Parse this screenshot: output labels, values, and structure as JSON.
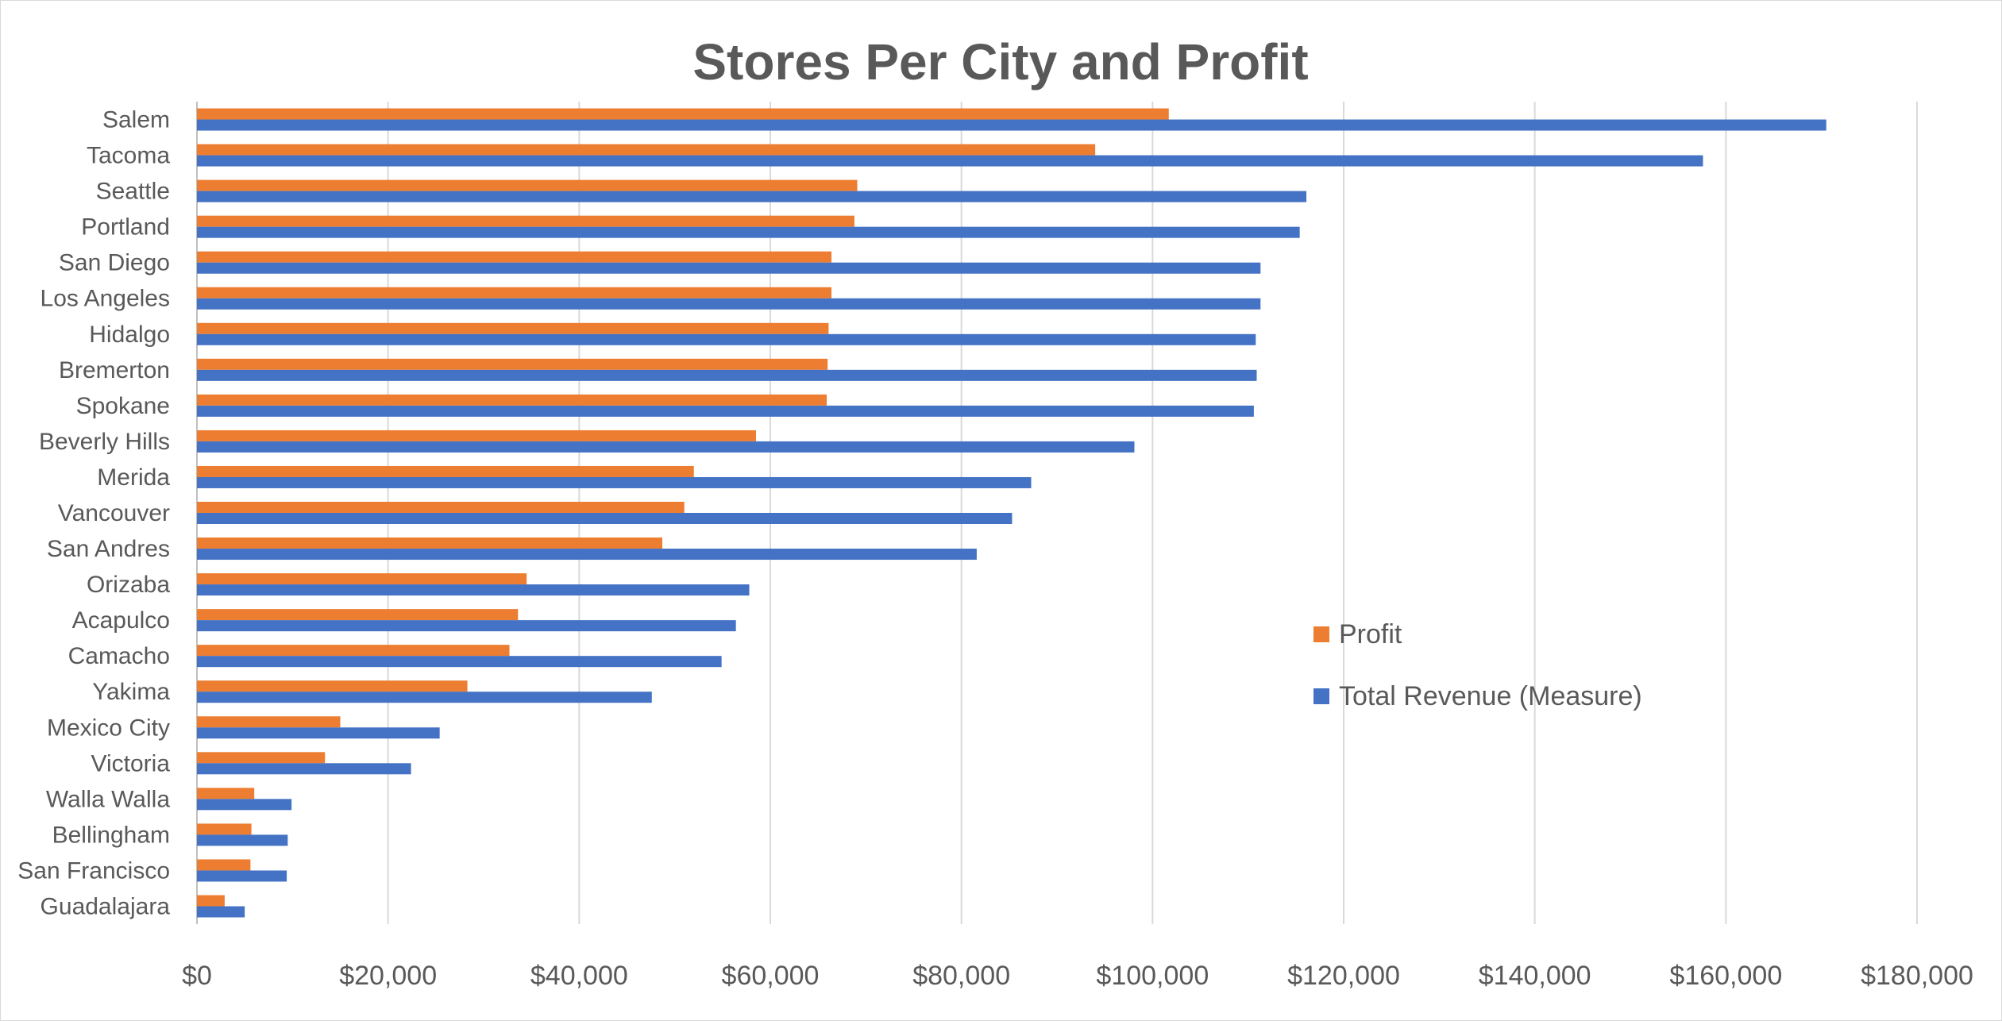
{
  "chart_data": {
    "type": "bar",
    "orientation": "horizontal",
    "title": "Stores Per City and Profit",
    "categories": [
      "Salem",
      "Tacoma",
      "Seattle",
      "Portland",
      "San Diego",
      "Los Angeles",
      "Hidalgo",
      "Bremerton",
      "Spokane",
      "Beverly Hills",
      "Merida",
      "Vancouver",
      "San Andres",
      "Orizaba",
      "Acapulco",
      "Camacho",
      "Yakima",
      "Mexico City",
      "Victoria",
      "Walla Walla",
      "Bellingham",
      "San Francisco",
      "Guadalajara"
    ],
    "series": [
      {
        "name": "Profit",
        "color": "#ED7D31",
        "values": [
          101700,
          94000,
          69100,
          68800,
          66400,
          66400,
          66100,
          66000,
          65900,
          58500,
          52000,
          51000,
          48700,
          34500,
          33600,
          32700,
          28300,
          15000,
          13400,
          6000,
          5700,
          5600,
          2900
        ]
      },
      {
        "name": "Total Revenue (Measure)",
        "color": "#4472C4",
        "values": [
          170500,
          157600,
          116100,
          115400,
          111300,
          111300,
          110800,
          110900,
          110600,
          98100,
          87300,
          85300,
          81600,
          57800,
          56400,
          54900,
          47600,
          25400,
          22400,
          9900,
          9500,
          9400,
          5000
        ]
      }
    ],
    "xlim": [
      0,
      180000
    ],
    "ticks": [
      0,
      20000,
      40000,
      60000,
      80000,
      100000,
      120000,
      140000,
      160000,
      180000
    ],
    "tick_labels": [
      "$0",
      "$20,000",
      "$40,000",
      "$60,000",
      "$80,000",
      "$100,000",
      "$120,000",
      "$140,000",
      "$160,000",
      "$180,000"
    ],
    "grid": "vertical",
    "legend_position": "right-center",
    "xlabel": "",
    "ylabel": ""
  }
}
